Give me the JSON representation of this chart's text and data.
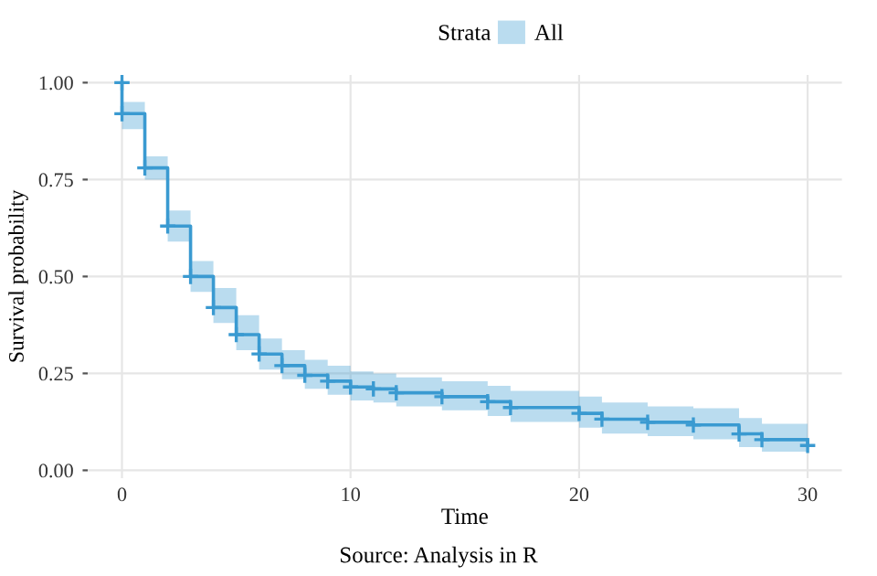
{
  "chart_data": {
    "type": "step",
    "xlabel": "Time",
    "ylabel": "Survival probability",
    "legend_title": "Strata",
    "legend": "top",
    "series": [
      {
        "name": "All",
        "color": "#3a9ad1",
        "x": [
          0,
          0,
          1,
          2,
          3,
          4,
          5,
          6,
          7,
          8,
          9,
          10,
          11,
          12,
          14,
          16,
          17,
          20,
          21,
          23,
          25,
          27,
          28,
          30
        ],
        "values": [
          1.0,
          0.92,
          0.78,
          0.63,
          0.5,
          0.42,
          0.35,
          0.3,
          0.27,
          0.245,
          0.23,
          0.215,
          0.21,
          0.2,
          0.19,
          0.177,
          0.162,
          0.147,
          0.132,
          0.124,
          0.117,
          0.094,
          0.079,
          0.064
        ],
        "lower": [
          1.0,
          0.88,
          0.75,
          0.59,
          0.46,
          0.38,
          0.31,
          0.26,
          0.235,
          0.21,
          0.195,
          0.18,
          0.175,
          0.165,
          0.155,
          0.14,
          0.125,
          0.11,
          0.095,
          0.088,
          0.08,
          0.06,
          0.048,
          0.035
        ],
        "upper": [
          1.0,
          0.95,
          0.81,
          0.67,
          0.54,
          0.47,
          0.4,
          0.34,
          0.31,
          0.285,
          0.27,
          0.255,
          0.25,
          0.24,
          0.23,
          0.218,
          0.205,
          0.19,
          0.175,
          0.165,
          0.16,
          0.135,
          0.12,
          0.1
        ]
      }
    ],
    "marker": "cross",
    "line_style": "solid",
    "xlim": [
      -1.5,
      31.5
    ],
    "xticks": [
      0,
      10,
      20,
      30
    ],
    "ylim": [
      -0.02,
      1.02
    ],
    "yticks": [
      {
        "value": 0,
        "label": "0.00"
      },
      {
        "value": 0.25,
        "label": "0.25"
      },
      {
        "value": 0.5,
        "label": "0.50"
      },
      {
        "value": 0.75,
        "label": "0.75"
      },
      {
        "value": 1,
        "label": "1.00"
      }
    ],
    "grid": true,
    "annotations": [
      "Source: Analysis in R"
    ]
  }
}
